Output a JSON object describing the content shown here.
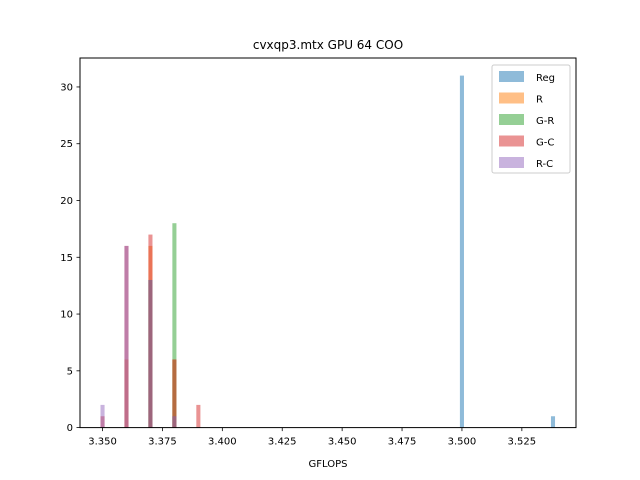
{
  "chart_data": {
    "type": "bar",
    "title": "cvxqp3.mtx GPU 64 COO",
    "xlabel": "GFLOPS",
    "ylabel": "",
    "xlim": [
      3.3406,
      3.5476
    ],
    "ylim": [
      0,
      32.55
    ],
    "xticks": [
      3.35,
      3.375,
      3.4,
      3.425,
      3.45,
      3.475,
      3.5,
      3.525
    ],
    "xtick_labels": [
      "3.350",
      "3.375",
      "3.400",
      "3.425",
      "3.450",
      "3.475",
      "3.500",
      "3.525"
    ],
    "yticks": [
      0,
      5,
      10,
      15,
      20,
      25,
      30
    ],
    "ytick_labels": [
      "0",
      "5",
      "10",
      "15",
      "20",
      "25",
      "30"
    ],
    "bin_width": 0.0017,
    "grid": false,
    "legend_position": "top-right",
    "alpha": 0.5,
    "series": [
      {
        "name": "Reg",
        "color": "#1f77b4",
        "bars": [
          {
            "x": 3.37,
            "count": 13
          },
          {
            "x": 3.38,
            "count": 1
          },
          {
            "x": 3.5,
            "count": 31
          },
          {
            "x": 3.538,
            "count": 1
          }
        ]
      },
      {
        "name": "R",
        "color": "#ff7f0e",
        "bars": [
          {
            "x": 3.36,
            "count": 6
          },
          {
            "x": 3.37,
            "count": 16
          },
          {
            "x": 3.38,
            "count": 6
          }
        ]
      },
      {
        "name": "G-R",
        "color": "#2ca02c",
        "bars": [
          {
            "x": 3.37,
            "count": 13
          },
          {
            "x": 3.38,
            "count": 18
          }
        ]
      },
      {
        "name": "G-C",
        "color": "#d62728",
        "bars": [
          {
            "x": 3.35,
            "count": 1
          },
          {
            "x": 3.36,
            "count": 16
          },
          {
            "x": 3.37,
            "count": 17
          },
          {
            "x": 3.38,
            "count": 6
          },
          {
            "x": 3.39,
            "count": 2
          }
        ]
      },
      {
        "name": "R-C",
        "color": "#9467bd",
        "bars": [
          {
            "x": 3.35,
            "count": 2
          },
          {
            "x": 3.36,
            "count": 16
          },
          {
            "x": 3.37,
            "count": 13
          },
          {
            "x": 3.38,
            "count": 1
          }
        ]
      }
    ]
  }
}
